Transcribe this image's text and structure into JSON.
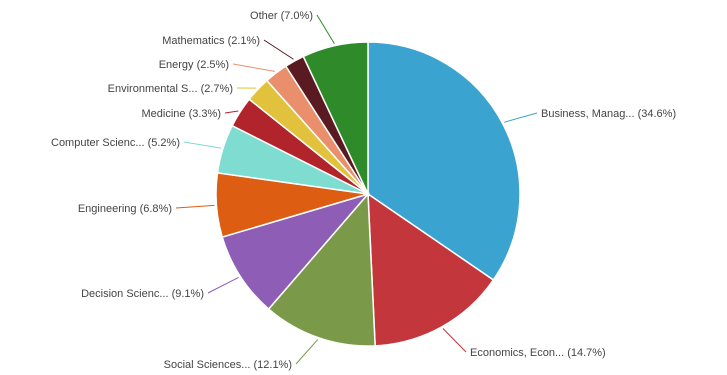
{
  "chart_data": {
    "type": "pie",
    "title": "",
    "slices": [
      {
        "label": "Business, Manag... (34.6%)",
        "value": 34.6,
        "color": "#3aa3cf"
      },
      {
        "label": "Economics, Econ... (14.7%)",
        "value": 14.7,
        "color": "#c2363c"
      },
      {
        "label": "Social Sciences... (12.1%)",
        "value": 12.1,
        "color": "#7a9a4a"
      },
      {
        "label": "Decision Scienc... (9.1%)",
        "value": 9.1,
        "color": "#8e5db6"
      },
      {
        "label": "Engineering (6.8%)",
        "value": 6.8,
        "color": "#dd5d12"
      },
      {
        "label": "Computer Scienc... (5.2%)",
        "value": 5.2,
        "color": "#7fdcd0"
      },
      {
        "label": "Medicine (3.3%)",
        "value": 3.3,
        "color": "#b1242c"
      },
      {
        "label": "Environmental S... (2.7%)",
        "value": 2.7,
        "color": "#e2c23c"
      },
      {
        "label": "Energy (2.5%)",
        "value": 2.5,
        "color": "#ea8f6c"
      },
      {
        "label": "Mathematics (2.1%)",
        "value": 2.1,
        "color": "#5a1a22"
      },
      {
        "label": "Other (7.0%)",
        "value": 7.0,
        "color": "#2f8a2a"
      }
    ],
    "start_angle": "12 o'clock",
    "direction": "clockwise",
    "legend": "none (slice labels with leader lines)"
  }
}
